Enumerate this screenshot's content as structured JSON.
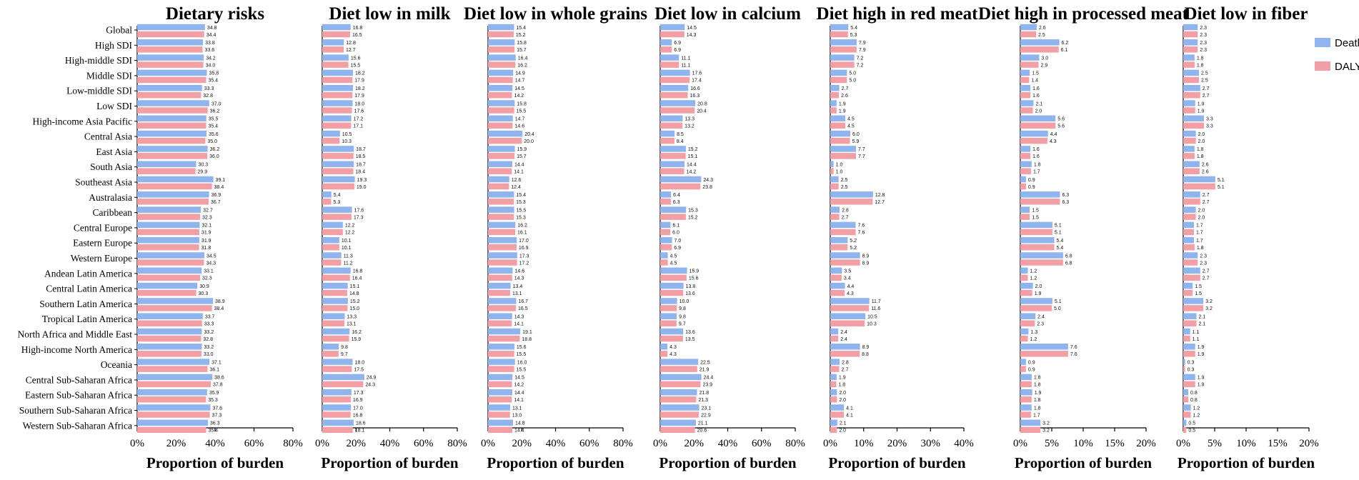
{
  "legend": [
    {
      "name": "Deaths",
      "color": "#8fb4ee"
    },
    {
      "name": "DALYs",
      "color": "#f2a0a6"
    }
  ],
  "chart_data": [
    {
      "type": "bar",
      "title": "Dietary risks",
      "xlabel": "Proportion of burden",
      "xlim": [
        0,
        80
      ],
      "xticks": [
        "0%",
        "20%",
        "40%",
        "60%",
        "80%"
      ],
      "categories": [
        "Global",
        "High SDI",
        "High-middle SDI",
        "Middle SDI",
        "Low-middle SDI",
        "Low SDI",
        "High-income Asia Pacific",
        "Central Asia",
        "East Asia",
        "South Asia",
        "Southeast Asia",
        "Australasia",
        "Caribbean",
        "Central Europe",
        "Eastern Europe",
        "Western Europe",
        "Andean Latin America",
        "Central Latin America",
        "Southern Latin America",
        "Tropical Latin America",
        "North Africa and Middle East",
        "High-income North America",
        "Oceania",
        "Central Sub-Saharan Africa",
        "Eastern Sub-Saharan Africa",
        "Southern Sub-Saharan Africa",
        "Western Sub-Saharan Africa"
      ],
      "series": [
        {
          "name": "Deaths",
          "values": [
            34.8,
            33.8,
            34.2,
            35.8,
            33.3,
            37.0,
            35.5,
            35.6,
            36.2,
            30.3,
            39.1,
            36.9,
            32.7,
            32.1,
            31.9,
            34.5,
            33.1,
            30.9,
            38.9,
            33.7,
            33.2,
            33.2,
            37.1,
            38.6,
            35.9,
            37.6,
            36.3
          ]
        },
        {
          "name": "DALYs",
          "values": [
            34.4,
            33.6,
            34.0,
            35.4,
            32.8,
            36.2,
            35.4,
            35.0,
            36.0,
            29.9,
            38.4,
            36.7,
            32.3,
            31.9,
            31.8,
            34.3,
            32.3,
            30.3,
            38.4,
            33.3,
            32.8,
            33.0,
            36.1,
            37.8,
            35.3,
            37.3,
            35.4
          ]
        }
      ]
    },
    {
      "type": "bar",
      "title": "Diet low in milk",
      "xlabel": "Proportion of burden",
      "xlim": [
        0,
        80
      ],
      "xticks": [
        "0%",
        "20%",
        "40%",
        "60%",
        "80%"
      ],
      "series": [
        {
          "name": "Deaths",
          "values": [
            16.8,
            12.8,
            15.6,
            18.2,
            18.2,
            18.0,
            17.2,
            10.5,
            18.7,
            18.7,
            19.3,
            5.4,
            17.6,
            12.2,
            10.1,
            11.3,
            16.8,
            15.1,
            15.2,
            13.3,
            16.2,
            9.8,
            18.0,
            24.9,
            17.3,
            17.0,
            18.6
          ]
        },
        {
          "name": "DALYs",
          "values": [
            16.5,
            12.7,
            15.5,
            17.9,
            17.9,
            17.6,
            17.1,
            10.3,
            18.5,
            18.4,
            19.0,
            5.3,
            17.3,
            12.2,
            10.1,
            11.2,
            16.4,
            14.8,
            15.0,
            13.1,
            15.9,
            9.7,
            17.5,
            24.3,
            16.9,
            16.8,
            18.1
          ]
        }
      ]
    },
    {
      "type": "bar",
      "title": "Diet low in whole grains",
      "xlabel": "Proportion of burden",
      "xlim": [
        0,
        80
      ],
      "xticks": [
        "0%",
        "20%",
        "40%",
        "60%",
        "80%"
      ],
      "series": [
        {
          "name": "Deaths",
          "values": [
            15.4,
            15.8,
            16.4,
            14.9,
            14.5,
            15.8,
            14.7,
            20.4,
            15.9,
            14.4,
            12.6,
            15.4,
            15.5,
            16.2,
            17.0,
            17.3,
            14.6,
            13.4,
            16.7,
            14.3,
            19.1,
            15.6,
            16.0,
            14.5,
            14.4,
            13.1,
            14.8
          ]
        },
        {
          "name": "DALYs",
          "values": [
            15.2,
            15.7,
            16.2,
            14.7,
            14.2,
            15.5,
            14.6,
            20.0,
            15.7,
            14.1,
            12.4,
            15.3,
            15.3,
            16.1,
            16.9,
            17.2,
            14.3,
            13.1,
            16.5,
            14.1,
            18.8,
            15.5,
            15.5,
            14.2,
            14.1,
            13.0,
            14.4
          ]
        }
      ]
    },
    {
      "type": "bar",
      "title": "Diet low in calcium",
      "xlabel": "Proportion of burden",
      "xlim": [
        0,
        80
      ],
      "xticks": [
        "0%",
        "20%",
        "40%",
        "60%",
        "80%"
      ],
      "series": [
        {
          "name": "Deaths",
          "values": [
            14.5,
            6.9,
            11.1,
            17.6,
            16.6,
            20.8,
            13.3,
            8.5,
            15.2,
            14.4,
            24.3,
            6.4,
            15.3,
            6.1,
            7.0,
            4.5,
            15.9,
            13.8,
            10.0,
            9.8,
            13.6,
            4.3,
            22.5,
            24.4,
            21.8,
            23.1,
            21.1
          ]
        },
        {
          "name": "DALYs",
          "values": [
            14.3,
            6.9,
            11.1,
            17.4,
            16.3,
            20.4,
            13.2,
            8.4,
            15.1,
            14.2,
            23.8,
            6.3,
            15.2,
            6.0,
            6.9,
            4.5,
            15.6,
            13.6,
            9.8,
            9.7,
            13.5,
            4.3,
            21.9,
            23.9,
            21.3,
            22.9,
            20.6
          ]
        }
      ]
    },
    {
      "type": "bar",
      "title": "Diet high in red meat",
      "xlabel": "Proportion of burden",
      "xlim": [
        0,
        40
      ],
      "xticks": [
        "0%",
        "10%",
        "20%",
        "30%",
        "40%"
      ],
      "series": [
        {
          "name": "Deaths",
          "values": [
            5.4,
            7.9,
            7.2,
            5.0,
            2.7,
            1.9,
            4.5,
            6.0,
            7.7,
            1.0,
            2.5,
            12.8,
            2.8,
            7.6,
            5.2,
            8.9,
            3.5,
            4.4,
            11.7,
            10.5,
            2.4,
            8.9,
            2.8,
            1.9,
            2.0,
            4.1,
            2.1
          ]
        },
        {
          "name": "DALYs",
          "values": [
            5.3,
            7.9,
            7.2,
            5.0,
            2.6,
            1.9,
            4.5,
            5.9,
            7.7,
            1.0,
            2.5,
            12.7,
            2.7,
            7.6,
            5.2,
            8.9,
            3.4,
            4.3,
            11.6,
            10.3,
            2.4,
            8.8,
            2.7,
            1.8,
            2.0,
            4.1,
            2.0
          ]
        }
      ]
    },
    {
      "type": "bar",
      "title": "Diet high in processed meat",
      "xlabel": "Proportion of burden",
      "xlim": [
        0,
        20
      ],
      "xticks": [
        "0%",
        "5%",
        "10%",
        "15%",
        "20%"
      ],
      "series": [
        {
          "name": "Deaths",
          "values": [
            2.6,
            6.2,
            3.0,
            1.5,
            1.6,
            2.1,
            5.6,
            4.4,
            1.6,
            1.8,
            0.9,
            6.3,
            1.5,
            5.1,
            5.4,
            6.8,
            1.2,
            2.0,
            5.1,
            2.4,
            1.3,
            7.6,
            0.9,
            1.8,
            1.9,
            1.8,
            3.2
          ]
        },
        {
          "name": "DALYs",
          "values": [
            2.5,
            6.1,
            2.9,
            1.4,
            1.6,
            2.0,
            5.6,
            4.3,
            1.6,
            1.7,
            0.9,
            6.3,
            1.5,
            5.1,
            5.4,
            6.8,
            1.2,
            1.9,
            5.0,
            2.3,
            1.2,
            7.6,
            0.9,
            1.8,
            1.8,
            1.7,
            3.2
          ]
        }
      ]
    },
    {
      "type": "bar",
      "title": "Diet low in fiber",
      "xlabel": "Proportion of burden",
      "xlim": [
        0,
        20
      ],
      "xticks": [
        "0%",
        "5%",
        "10%",
        "15%",
        "20%"
      ],
      "series": [
        {
          "name": "Deaths",
          "values": [
            2.3,
            2.3,
            1.8,
            2.5,
            2.7,
            1.9,
            3.3,
            2.0,
            1.8,
            2.6,
            5.1,
            2.7,
            2.0,
            1.7,
            1.7,
            2.3,
            2.7,
            1.5,
            3.2,
            2.1,
            1.1,
            1.9,
            0.3,
            1.9,
            0.8,
            1.2,
            0.5
          ]
        },
        {
          "name": "DALYs",
          "values": [
            2.3,
            2.3,
            1.8,
            2.5,
            2.7,
            1.9,
            3.3,
            2.0,
            1.8,
            2.6,
            5.1,
            2.7,
            2.0,
            1.7,
            1.8,
            2.3,
            2.7,
            1.5,
            3.2,
            2.1,
            1.1,
            1.9,
            0.3,
            1.9,
            0.8,
            1.2,
            0.5
          ]
        }
      ]
    }
  ]
}
